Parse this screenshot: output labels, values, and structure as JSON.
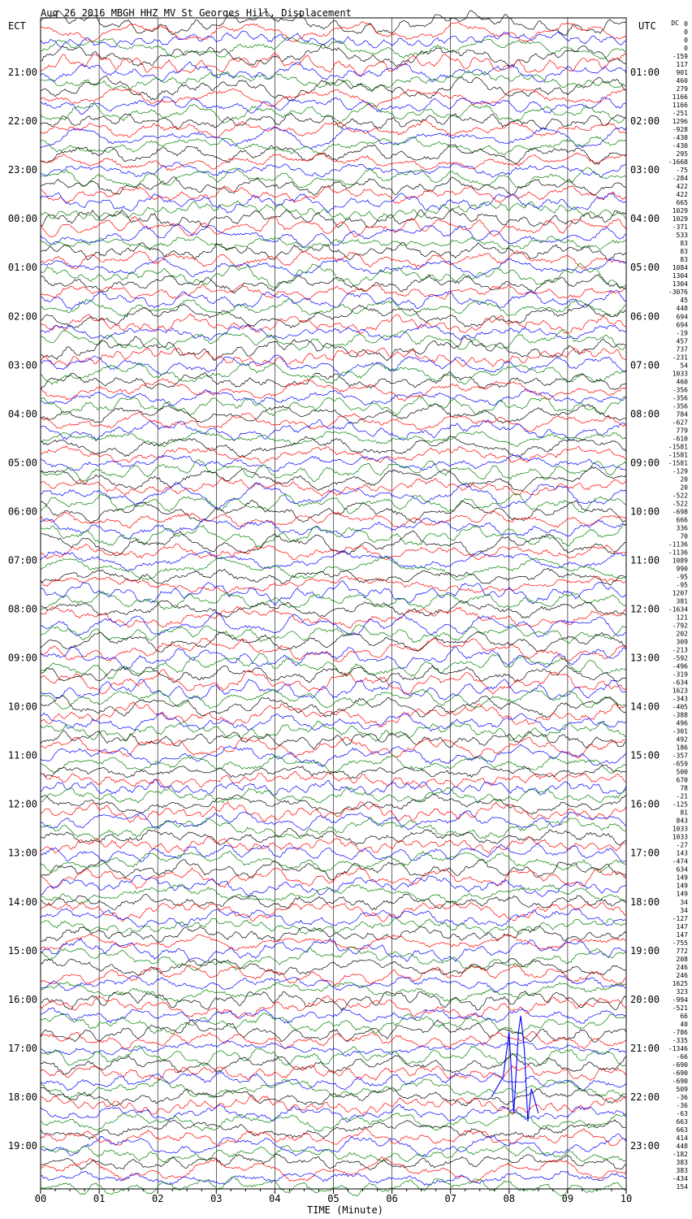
{
  "title": "Aug 26 2016 MBGH HHZ MV St Georges Hill, Displacement",
  "left_axis_label": "ECT",
  "right_axis_label": "UTC",
  "dc_header": "DC",
  "chart_data": {
    "type": "line",
    "plot_kind": "helicorder",
    "xlabel": "TIME (Minute)",
    "xlim": [
      0,
      10
    ],
    "x_tick_labels": [
      "00",
      "01",
      "02",
      "03",
      "04",
      "05",
      "06",
      "07",
      "08",
      "09",
      "10"
    ],
    "minor_ticks_per_minute": 4,
    "grid": "vertical lines at each minute",
    "trace_colors_cycle": [
      "#000000",
      "#ff0000",
      "#0000ff",
      "#008000"
    ],
    "rows_per_hour": 6,
    "total_rows": 144,
    "left_hour_labels": [
      "21:00",
      "22:00",
      "23:00",
      "00:00",
      "01:00",
      "02:00",
      "03:00",
      "04:00",
      "05:00",
      "06:00",
      "07:00",
      "08:00",
      "09:00",
      "10:00",
      "11:00",
      "12:00",
      "13:00",
      "14:00",
      "15:00",
      "16:00",
      "17:00",
      "18:00",
      "19:00"
    ],
    "right_hour_labels": [
      "01:00",
      "02:00",
      "03:00",
      "04:00",
      "05:00",
      "06:00",
      "07:00",
      "08:00",
      "09:00",
      "10:00",
      "11:00",
      "12:00",
      "13:00",
      "14:00",
      "15:00",
      "16:00",
      "17:00",
      "18:00",
      "19:00",
      "20:00",
      "21:00",
      "22:00",
      "23:00"
    ],
    "dc_values": [
      "0",
      "0",
      "0",
      "0",
      "-159",
      "117",
      "901",
      "460",
      "279",
      "1166",
      "1166",
      "-251",
      "1296",
      "-928",
      "-430",
      "-430",
      "295",
      "-1668",
      "-75",
      "-284",
      "422",
      "422",
      "665",
      "1029",
      "1029",
      "-371",
      "533",
      "83",
      "83",
      "83",
      "1084",
      "1304",
      "1304",
      "-3076",
      "45",
      "448",
      "694",
      "694",
      "-19",
      "457",
      "737",
      "-231",
      "54",
      "1033",
      "460",
      "-356",
      "-356",
      "-356",
      "784",
      "-627",
      "779",
      "-610",
      "-1581",
      "-1581",
      "-1581",
      "-129",
      "20",
      "20",
      "-522",
      "-522",
      "-698",
      "666",
      "336",
      "70",
      "-1136",
      "-1136",
      "1089",
      "990",
      "-95",
      "-95",
      "1207",
      "381",
      "-1634",
      "121",
      "-792",
      "202",
      "309",
      "-213",
      "-592",
      "-496",
      "-319",
      "-634",
      "1623",
      "-343",
      "-405",
      "-388",
      "496",
      "-301",
      "492",
      "186",
      "-357",
      "-659",
      "500",
      "670",
      "78",
      "-21",
      "-125",
      "81",
      "843",
      "1033",
      "1033",
      "-27",
      "143",
      "-474",
      "634",
      "149",
      "149",
      "149",
      "34",
      "34",
      "-127",
      "147",
      "147",
      "-755",
      "772",
      "208",
      "246",
      "246",
      "1625",
      "323",
      "-994",
      "-521",
      "66",
      "40",
      "-786",
      "-335",
      "-1346",
      "-66",
      "-690",
      "-690",
      "-690",
      "509",
      "-36",
      "-36",
      "-63",
      "663",
      "663",
      "414",
      "448",
      "-182",
      "383",
      "383",
      "-434",
      "154"
    ],
    "notable_event": {
      "description_visible": "large transient on blue trace",
      "start_minute": 7.7,
      "peak_minute": 8.2,
      "end_minute": 8.5,
      "row_index_start": 121,
      "row_index_peak": 125,
      "color": "#0000ff"
    }
  }
}
